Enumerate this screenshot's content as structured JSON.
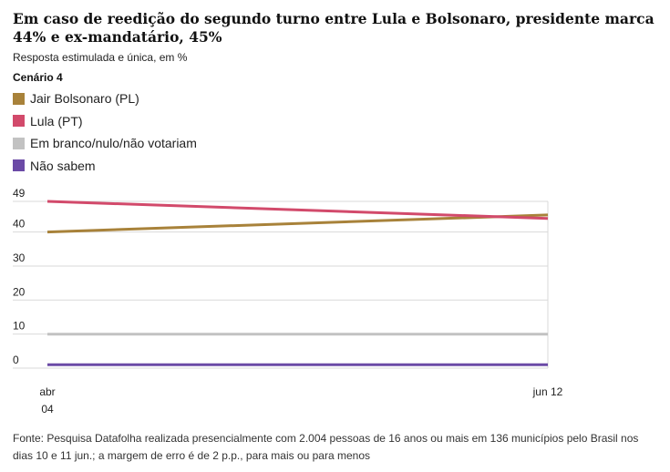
{
  "title": "Em caso de reedição do segundo turno entre Lula e Bolsonaro, presidente marca 44% e ex-mandatário, 45%",
  "subtitle": "Resposta estimulada e única, em %",
  "scenario_label": "Cenário 4",
  "legend": [
    {
      "name": "Jair Bolsonaro (PL)",
      "color": "#a8823a"
    },
    {
      "name": "Lula (PT)",
      "color": "#d24a6b"
    },
    {
      "name": "Em branco/nulo/não votariam",
      "color": "#c2c2c2"
    },
    {
      "name": "Não sabem",
      "color": "#6b4aa6"
    }
  ],
  "chart_data": {
    "type": "line",
    "x": [
      "abr 04",
      "jun 12"
    ],
    "x_tick_labels": [
      [
        "abr",
        "04"
      ],
      [
        "jun 12"
      ]
    ],
    "y_ticks": [
      0,
      10,
      20,
      30,
      40,
      49
    ],
    "ylim": [
      0,
      49
    ],
    "grid": true,
    "series": [
      {
        "name": "Jair Bolsonaro (PL)",
        "values": [
          40,
          45
        ],
        "color": "#a8823a"
      },
      {
        "name": "Lula (PT)",
        "values": [
          49,
          44
        ],
        "color": "#d24a6b"
      },
      {
        "name": "Em branco/nulo/não votariam",
        "values": [
          10,
          10
        ],
        "color": "#c2c2c2"
      },
      {
        "name": "Não sabem",
        "values": [
          1,
          1
        ],
        "color": "#6b4aa6"
      }
    ]
  },
  "source": "Fonte: Pesquisa Datafolha realizada presencialmente com 2.004 pessoas de 16 anos ou mais em 136 municípios pelo Brasil nos dias 10 e 11 jun.; a margem de erro é de 2 p.p., para mais ou para menos"
}
